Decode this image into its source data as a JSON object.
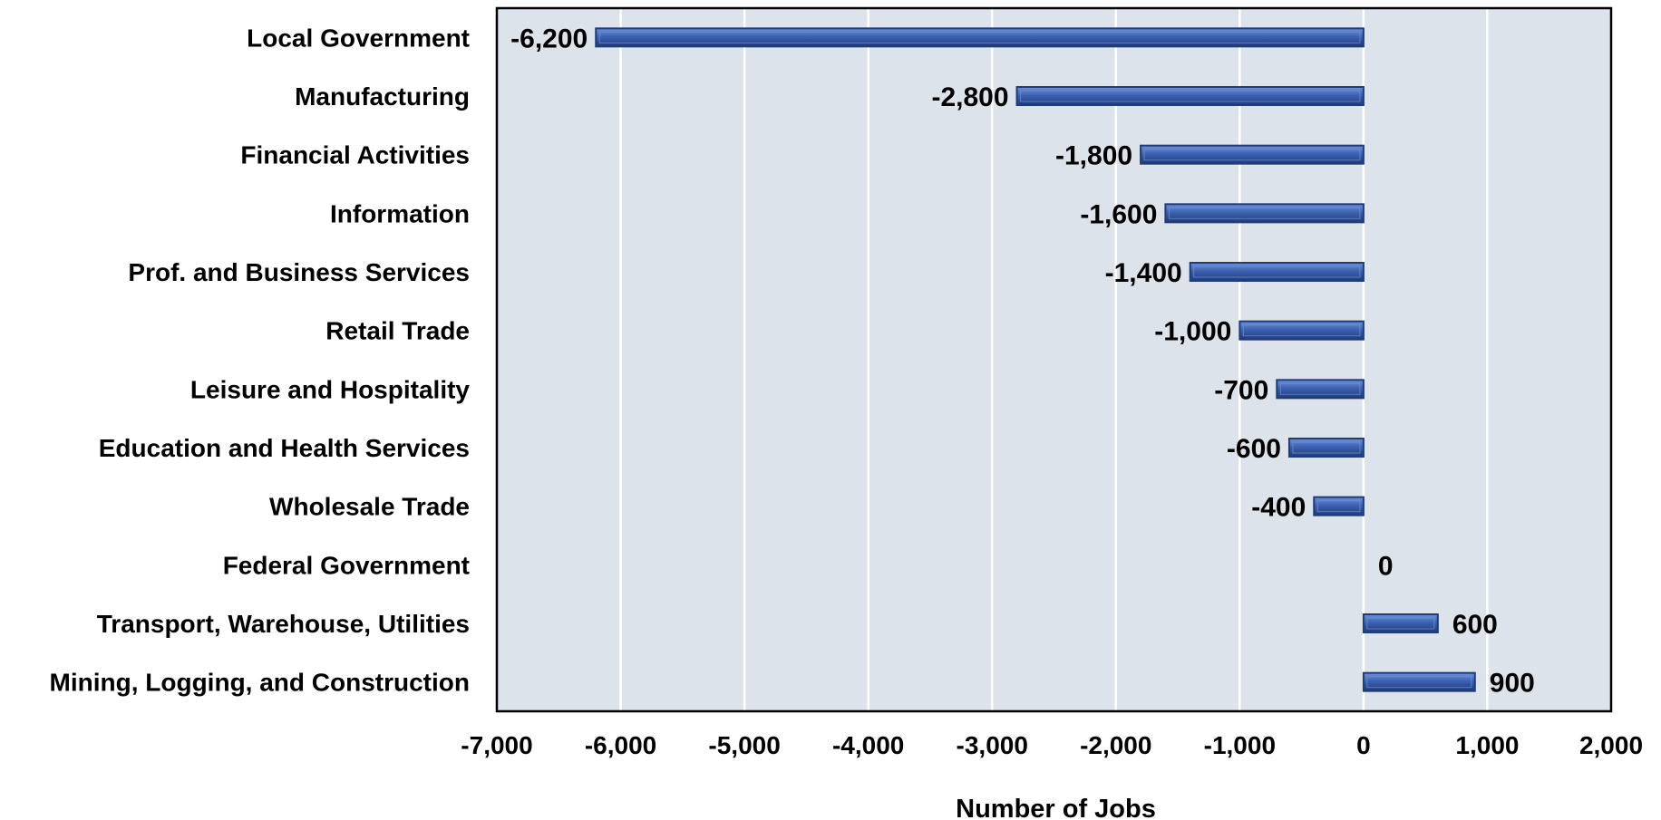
{
  "chart_data": {
    "type": "bar",
    "orientation": "horizontal",
    "categories": [
      "Local Government",
      "Manufacturing",
      "Financial Activities",
      "Information",
      "Prof. and Business Services",
      "Retail Trade",
      "Leisure and Hospitality",
      "Education and Health Services",
      "Wholesale Trade",
      "Federal Government",
      "Transport, Warehouse, Utilities",
      "Mining, Logging, and Construction"
    ],
    "values": [
      -6200,
      -2800,
      -1800,
      -1600,
      -1400,
      -1000,
      -700,
      -600,
      -400,
      0,
      600,
      900
    ],
    "data_labels": [
      "-6,200",
      "-2,800",
      "-1,800",
      "-1,600",
      "-1,400",
      "-1,000",
      "-700",
      "-600",
      "-400",
      "0",
      "600",
      "900"
    ],
    "xlabel": "Number of Jobs",
    "ylabel": "",
    "title": "",
    "xlim": [
      -7000,
      2000
    ],
    "xticks": [
      -7000,
      -6000,
      -5000,
      -4000,
      -3000,
      -2000,
      -1000,
      0,
      1000,
      2000
    ],
    "xtick_labels": [
      "-7,000",
      "-6,000",
      "-5,000",
      "-4,000",
      "-3,000",
      "-2,000",
      "-1,000",
      "0",
      "1,000",
      "2,000"
    ],
    "grid": "vertical",
    "legend": "none",
    "colors": {
      "bar": "#3d62b3",
      "bar_light": "#6f92d8",
      "bar_dark": "#1f3b78",
      "plot_background": "#dde3ea",
      "gridline": "#ffffff",
      "frame": "#000000"
    }
  }
}
